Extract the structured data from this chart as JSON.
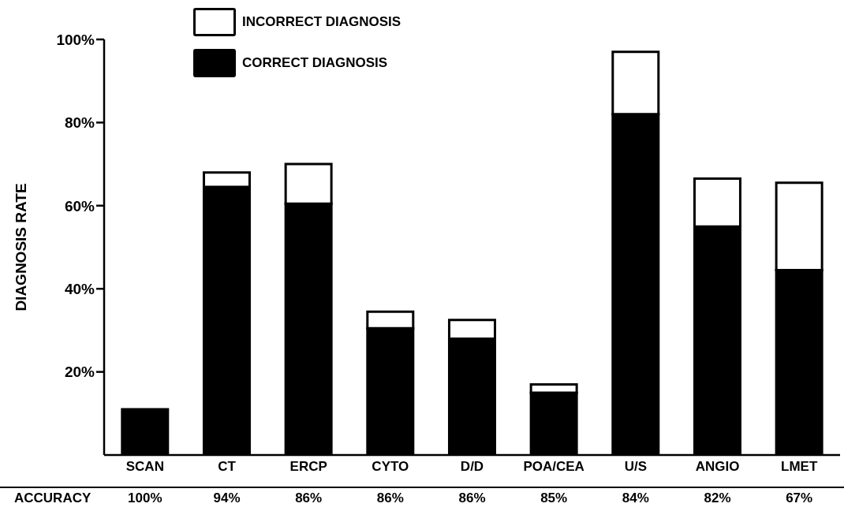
{
  "chart_data": {
    "type": "bar",
    "stacked": true,
    "ylabel": "DIAGNOSIS RATE",
    "categories": [
      "SCAN",
      "CT",
      "ERCP",
      "CYTO",
      "D/D",
      "POA/CEA",
      "U/S",
      "ANGIO",
      "LMET"
    ],
    "series": [
      {
        "name": "CORRECT DIAGNOSIS",
        "color": "#000000",
        "values": [
          11,
          64.5,
          60.5,
          30.5,
          28,
          15,
          82,
          55,
          44.5
        ]
      },
      {
        "name": "INCORRECT DIAGNOSIS",
        "color": "#ffffff",
        "values": [
          null,
          3.5,
          9.5,
          4,
          4.5,
          2,
          15,
          11.5,
          21
        ]
      }
    ],
    "ylim": [
      0,
      100
    ],
    "yticks": [
      {
        "value": 20,
        "label": "20%"
      },
      {
        "value": 40,
        "label": "40%"
      },
      {
        "value": 60,
        "label": "60%"
      },
      {
        "value": 80,
        "label": "80%"
      },
      {
        "value": 100,
        "label": "100%"
      }
    ],
    "grid": false,
    "legend": "top",
    "annotations": [
      "ACCURACY",
      "100%",
      "94%",
      "86%",
      "86%",
      "86%",
      "85%",
      "84%",
      "82%",
      "67%"
    ]
  }
}
